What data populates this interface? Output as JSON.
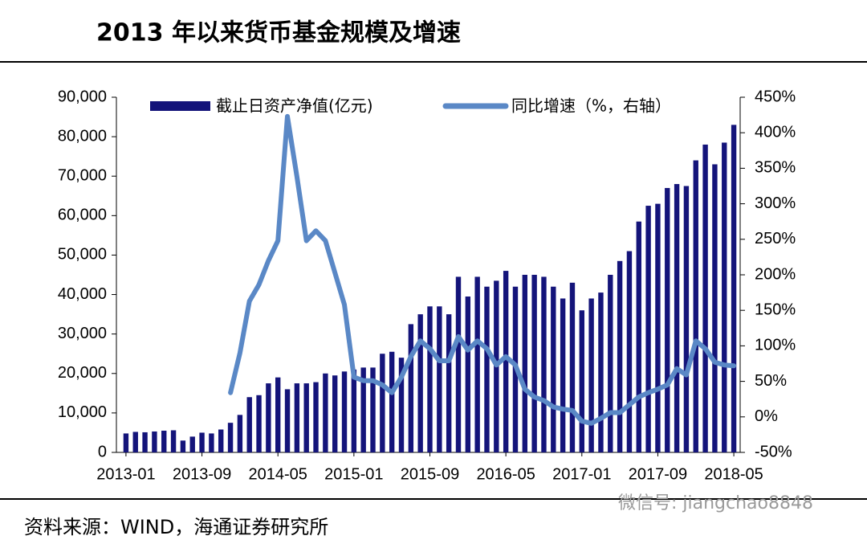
{
  "chart_data": {
    "type": "bar+line",
    "title": "2013 年以来货币基金规模及增速",
    "source": "资料来源：WIND，海通证券研究所",
    "watermark": "微信号: jiangchao8848",
    "categories": [
      "2013-01",
      null,
      null,
      null,
      null,
      null,
      null,
      null,
      "2013-09",
      null,
      null,
      null,
      null,
      null,
      null,
      null,
      "2014-05",
      null,
      null,
      null,
      null,
      null,
      null,
      null,
      "2015-01",
      null,
      null,
      null,
      null,
      null,
      null,
      null,
      "2015-09",
      null,
      null,
      null,
      null,
      null,
      null,
      null,
      "2016-05",
      null,
      null,
      null,
      null,
      null,
      null,
      null,
      "2017-01",
      null,
      null,
      null,
      null,
      null,
      null,
      null,
      "2017-09",
      null,
      null,
      null,
      null,
      null,
      null,
      null,
      "2018-05"
    ],
    "series": [
      {
        "name": "截止日资产净值(亿元)",
        "type": "bar",
        "color": "#14147a",
        "values": [
          4800,
          5200,
          5100,
          5300,
          5500,
          5600,
          3000,
          4000,
          5000,
          4800,
          5800,
          7500,
          9500,
          14000,
          14500,
          17500,
          19000,
          16000,
          17500,
          17500,
          17800,
          20000,
          19500,
          20500,
          21000,
          21500,
          21500,
          25000,
          25500,
          24000,
          32500,
          35000,
          37000,
          37000,
          35000,
          44500,
          39500,
          44500,
          42000,
          43500,
          46000,
          42000,
          45000,
          45000,
          44500,
          42000,
          39000,
          43000,
          36000,
          39000,
          40500,
          45000,
          48500,
          51000,
          58500,
          62500,
          63000,
          67000,
          68000,
          67500,
          74000,
          78000,
          73000,
          78500,
          83000
        ]
      },
      {
        "name": "同比增速（%，右轴）",
        "type": "line",
        "axis": "y2",
        "color": "#5a88c6",
        "values": [
          null,
          null,
          null,
          null,
          null,
          null,
          null,
          null,
          null,
          null,
          null,
          34,
          90,
          163,
          186,
          220,
          248,
          423,
          338,
          248,
          262,
          248,
          203,
          158,
          56,
          51,
          51,
          45,
          34,
          56,
          85,
          107,
          96,
          79,
          79,
          113,
          94,
          107,
          96,
          73,
          85,
          73,
          39,
          28,
          23,
          14,
          11,
          9,
          -6,
          -9,
          -2,
          6,
          6,
          17,
          28,
          34,
          39,
          45,
          68,
          59,
          107,
          96,
          77,
          73,
          72
        ]
      }
    ],
    "ylim": [
      0,
      90000
    ],
    "yticks": [
      0,
      {
        "value": 10000,
        "label": "10,000"
      },
      {
        "value": 20000,
        "label": "20,000"
      },
      {
        "value": 30000,
        "label": "30,000"
      },
      {
        "value": 40000,
        "label": "40,000"
      },
      {
        "value": 50000,
        "label": "50,000"
      },
      {
        "value": 60000,
        "label": "60,000"
      },
      {
        "value": 70000,
        "label": "70,000"
      },
      {
        "value": 80000,
        "label": "80,000"
      },
      {
        "value": 90000,
        "label": "90,000"
      }
    ],
    "y2lim": [
      -50,
      450
    ],
    "y2ticks": [
      {
        "value": -50,
        "label": "-50%"
      },
      {
        "value": 0,
        "label": "0%"
      },
      {
        "value": 50,
        "label": "50%"
      },
      {
        "value": 100,
        "label": "100%"
      },
      {
        "value": 150,
        "label": "150%"
      },
      {
        "value": 200,
        "label": "200%"
      },
      {
        "value": 250,
        "label": "250%"
      },
      {
        "value": 300,
        "label": "300%"
      },
      {
        "value": 350,
        "label": "350%"
      },
      {
        "value": 400,
        "label": "400%"
      },
      {
        "value": 450,
        "label": "450%"
      }
    ],
    "legend": "top"
  }
}
